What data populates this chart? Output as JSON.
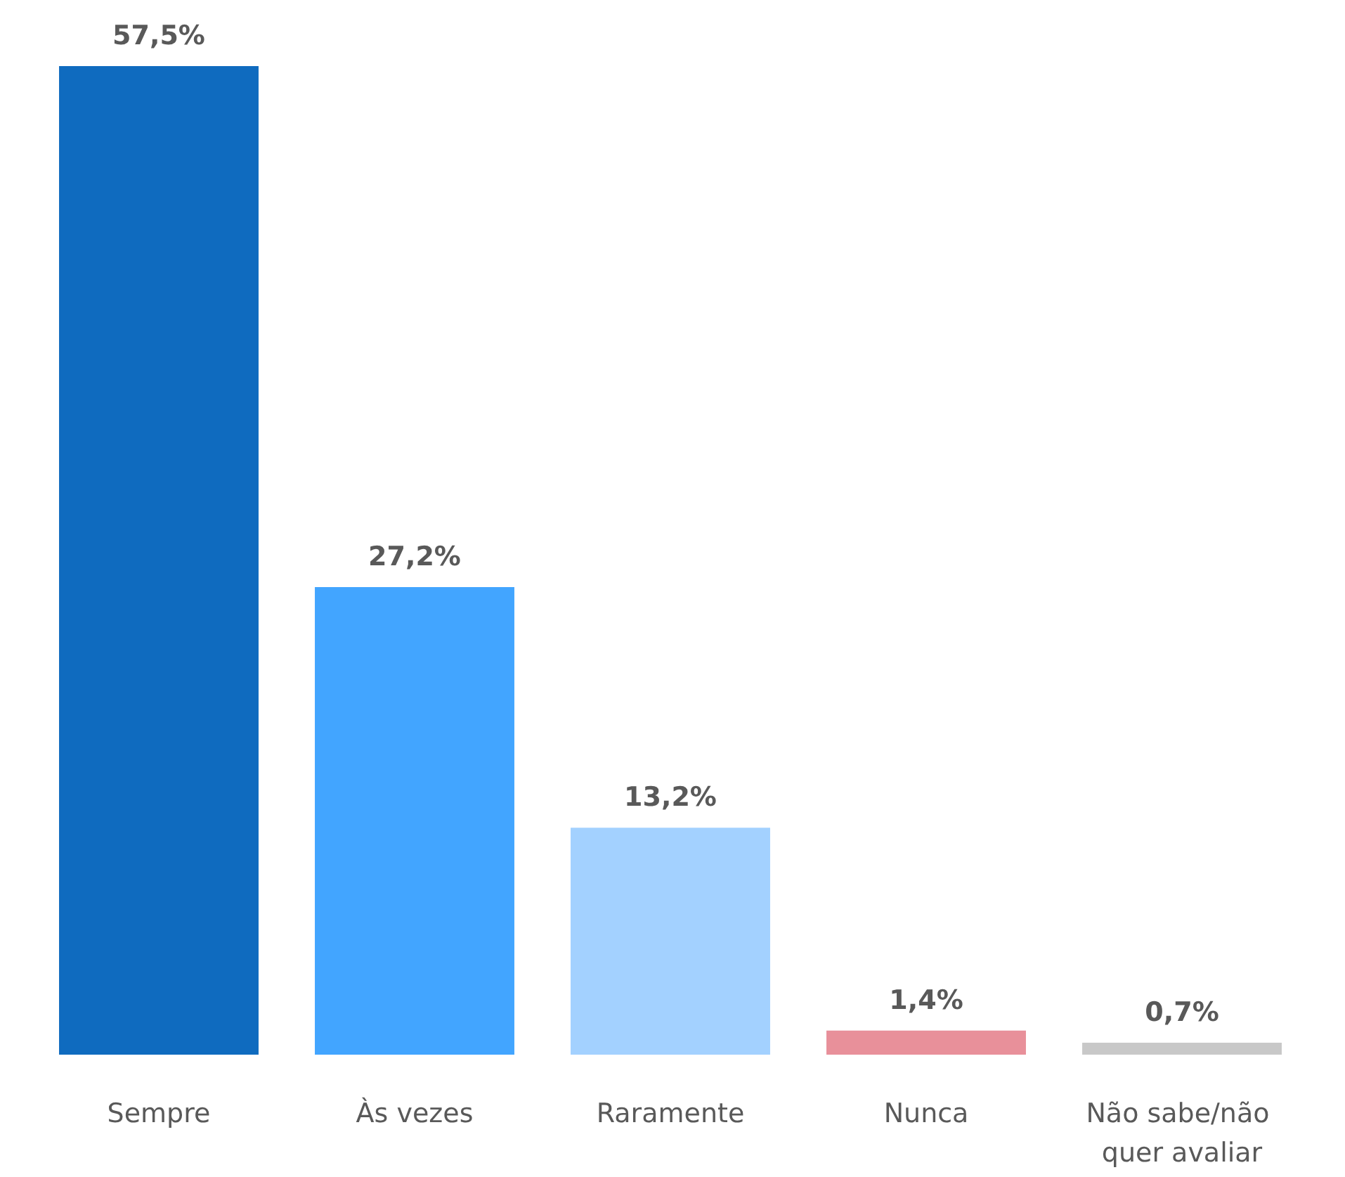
{
  "chart_data": {
    "type": "bar",
    "categories": [
      "Sempre",
      "Às vezes",
      "Raramente",
      "Nunca",
      "Não sabe/não quer avaliar"
    ],
    "values": [
      57.5,
      27.2,
      13.2,
      1.4,
      0.7
    ],
    "colors": [
      "#0f6bbf",
      "#42a5ff",
      "#a3d1ff",
      "#e8909a",
      "#c8c8c8"
    ],
    "value_labels": [
      "57,5%",
      "27,2%",
      "13,2%",
      "1,4%",
      "0,7%"
    ]
  }
}
